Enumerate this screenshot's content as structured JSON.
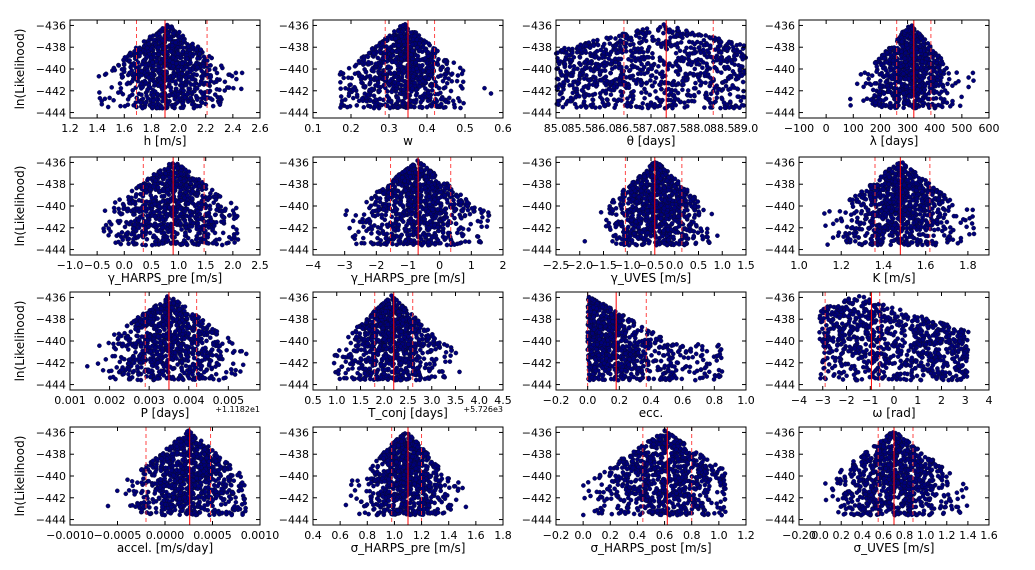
{
  "chart_data": [
    {
      "type": "scatter",
      "xlabel": "h [m/s]",
      "ylabel": "ln(Likelihood)",
      "xlim": [
        1.2,
        2.6
      ],
      "ylim": [
        -444.5,
        -435.5
      ],
      "xticks": [
        "1.2",
        "1.4",
        "1.6",
        "1.8",
        "2.0",
        "2.2",
        "2.4",
        "2.6"
      ],
      "yticks": [
        "-436",
        "-438",
        "-440",
        "-442",
        "-444"
      ],
      "best": 1.9,
      "ci": [
        1.69,
        2.21
      ],
      "dist": {
        "kind": "normal",
        "center": 1.92,
        "spread": 0.19,
        "min": 1.4,
        "max": 2.48
      },
      "n": 850
    },
    {
      "type": "scatter",
      "xlabel": "w",
      "ylabel": "",
      "xlim": [
        0.1,
        0.6
      ],
      "ylim": [
        -444.5,
        -435.5
      ],
      "xticks": [
        "0.1",
        "0.2",
        "0.3",
        "0.4",
        "0.5",
        "0.6"
      ],
      "yticks": [
        "-436",
        "-438",
        "-440",
        "-442",
        "-444"
      ],
      "best": 0.35,
      "ci": [
        0.29,
        0.42
      ],
      "dist": {
        "kind": "normal",
        "center": 0.34,
        "spread": 0.065,
        "min": 0.17,
        "max": 0.59
      },
      "n": 850
    },
    {
      "type": "scatter",
      "xlabel": "θ [days]",
      "ylabel": "",
      "xlim": [
        85.0,
        89.0
      ],
      "ylim": [
        -444.5,
        -435.5
      ],
      "xticks": [
        "85.0",
        "85.5",
        "86.0",
        "86.5",
        "87.0",
        "87.5",
        "88.0",
        "88.5",
        "89.0"
      ],
      "yticks": [
        "-436",
        "-438",
        "-440",
        "-442",
        "-444"
      ],
      "best": 87.32,
      "ci": [
        86.43,
        88.31
      ],
      "dist": {
        "kind": "uniform",
        "center": 87.2,
        "spread": 1.2,
        "min": 85.0,
        "max": 89.0
      },
      "n": 950
    },
    {
      "type": "scatter",
      "xlabel": "λ [days]",
      "ylabel": "",
      "xlim": [
        -100,
        600
      ],
      "ylim": [
        -444.5,
        -435.5
      ],
      "xticks": [
        "-100",
        "0",
        "100",
        "200",
        "300",
        "400",
        "500",
        "600"
      ],
      "yticks": [
        "-436",
        "-438",
        "-440",
        "-442",
        "-444"
      ],
      "best": 323,
      "ci": [
        260,
        386
      ],
      "dist": {
        "kind": "normal",
        "center": 310,
        "spread": 65,
        "min": 10,
        "max": 550
      },
      "n": 850
    },
    {
      "type": "scatter",
      "xlabel": "γ_HARPS_pre [m/s]",
      "ylabel": "ln(Likelihood)",
      "xlim": [
        -1.0,
        2.5
      ],
      "ylim": [
        -444.5,
        -435.5
      ],
      "xticks": [
        "-1.0",
        "-0.5",
        "0.0",
        "0.5",
        "1.0",
        "1.5",
        "2.0",
        "2.5"
      ],
      "yticks": [
        "-436",
        "-438",
        "-440",
        "-442",
        "-444"
      ],
      "best": 0.9,
      "ci": [
        0.35,
        1.47
      ],
      "dist": {
        "kind": "normal",
        "center": 0.9,
        "spread": 0.5,
        "min": -0.4,
        "max": 2.1
      },
      "n": 850
    },
    {
      "type": "scatter",
      "xlabel": "γ_HARPS_pre [m/s]",
      "ylabel": "",
      "xlim": [
        -4,
        2
      ],
      "ylim": [
        -444.5,
        -435.5
      ],
      "xticks": [
        "-4",
        "-3",
        "-2",
        "-1",
        "0",
        "1",
        "2"
      ],
      "yticks": [
        "-436",
        "-438",
        "-440",
        "-442",
        "-444"
      ],
      "best": -0.68,
      "ci": [
        -1.55,
        0.35
      ],
      "dist": {
        "kind": "normal",
        "center": -0.7,
        "spread": 0.8,
        "min": -3.4,
        "max": 1.7
      },
      "n": 850
    },
    {
      "type": "scatter",
      "xlabel": "γ_UVES [m/s]",
      "ylabel": "",
      "xlim": [
        -2.5,
        1.5
      ],
      "ylim": [
        -444.5,
        -435.5
      ],
      "xticks": [
        "-2.5",
        "-2.0",
        "-1.5",
        "-1.0",
        "-0.5",
        "0.0",
        "0.5",
        "1.0",
        "1.5"
      ],
      "yticks": [
        "-436",
        "-438",
        "-440",
        "-442",
        "-444"
      ],
      "best": -0.42,
      "ci": [
        -1.04,
        0.15
      ],
      "dist": {
        "kind": "normal",
        "center": -0.4,
        "spread": 0.45,
        "min": -1.9,
        "max": 0.95
      },
      "n": 850
    },
    {
      "type": "scatter",
      "xlabel": "K [m/s]",
      "ylabel": "",
      "xlim": [
        1.0,
        1.9
      ],
      "ylim": [
        -444.5,
        -435.5
      ],
      "xticks": [
        "1.0",
        "1.2",
        "1.4",
        "1.6",
        "1.8"
      ],
      "yticks": [
        "-436",
        "-438",
        "-440",
        "-442",
        "-444"
      ],
      "best": 1.48,
      "ci": [
        1.36,
        1.62
      ],
      "dist": {
        "kind": "normal",
        "center": 1.48,
        "spread": 0.12,
        "min": 1.12,
        "max": 1.84
      },
      "n": 850
    },
    {
      "type": "scatter",
      "xlabel": "P [days]",
      "ylabel": "ln(Likelihood)",
      "xlim": [
        0.001,
        0.0058
      ],
      "ylim": [
        -444.5,
        -435.5
      ],
      "xticks": [
        "0.001",
        "0.002",
        "0.003",
        "0.004",
        "0.005"
      ],
      "yticks": [
        "-436",
        "-438",
        "-440",
        "-442",
        "-444"
      ],
      "offset": "+1.1182e1",
      "best": 0.0035,
      "ci": [
        0.0029,
        0.0042
      ],
      "dist": {
        "kind": "normal",
        "center": 0.0035,
        "spread": 0.0007,
        "min": 0.0014,
        "max": 0.0055
      },
      "n": 850
    },
    {
      "type": "scatter",
      "xlabel": "T_conj [days]",
      "ylabel": "",
      "xlim": [
        0.5,
        4.5
      ],
      "ylim": [
        -444.5,
        -435.5
      ],
      "xticks": [
        "0.5",
        "1.0",
        "1.5",
        "2.0",
        "2.5",
        "3.0",
        "3.5",
        "4.0",
        "4.5"
      ],
      "yticks": [
        "-436",
        "-438",
        "-440",
        "-442",
        "-444"
      ],
      "offset": "+5.726e3",
      "best": 2.2,
      "ci": [
        1.8,
        2.6
      ],
      "dist": {
        "kind": "normal",
        "center": 2.15,
        "spread": 0.45,
        "min": 0.9,
        "max": 3.9
      },
      "n": 850
    },
    {
      "type": "scatter",
      "xlabel": "ecc.",
      "ylabel": "",
      "xlim": [
        -0.2,
        1.0
      ],
      "ylim": [
        -444.5,
        -435.5
      ],
      "xticks": [
        "-0.2",
        "0.0",
        "0.2",
        "0.4",
        "0.6",
        "0.8",
        "1.0"
      ],
      "yticks": [
        "-436",
        "-438",
        "-440",
        "-442",
        "-444"
      ],
      "best": 0.18,
      "ci": [
        0.0,
        0.37
      ],
      "dist": {
        "kind": "decay",
        "center": 0.0,
        "spread": 0.22,
        "min": 0.0,
        "max": 0.85
      },
      "n": 850
    },
    {
      "type": "scatter",
      "xlabel": "ω [rad]",
      "ylabel": "",
      "xlim": [
        -4,
        4
      ],
      "ylim": [
        -444.5,
        -435.5
      ],
      "xticks": [
        "-4",
        "-3",
        "-2",
        "-1",
        "0",
        "1",
        "2",
        "3",
        "4"
      ],
      "yticks": [
        "-436",
        "-438",
        "-440",
        "-442",
        "-444"
      ],
      "best": -0.95,
      "ci": [
        -2.9,
        -0.6
      ],
      "dist": {
        "kind": "uniform",
        "center": -1.5,
        "spread": 1.3,
        "min": -3.14,
        "max": 3.14
      },
      "n": 850
    },
    {
      "type": "scatter",
      "xlabel": "accel. [m/s/day]",
      "ylabel": "ln(Likelihood)",
      "xlim": [
        -0.001,
        0.001
      ],
      "ylim": [
        -444.5,
        -435.5
      ],
      "xticks": [
        "-0.0010",
        "-0.0005",
        "0.0000",
        "0.0005",
        "0.0010"
      ],
      "yticks": [
        "-436",
        "-438",
        "-440",
        "-442",
        "-444"
      ],
      "best": 0.00026,
      "ci": [
        -0.0002,
        0.00048
      ],
      "dist": {
        "kind": "normal",
        "center": 0.00025,
        "spread": 0.00025,
        "min": -0.0007,
        "max": 0.00085
      },
      "n": 850
    },
    {
      "type": "scatter",
      "xlabel": "σ_HARPS_pre [m/s]",
      "ylabel": "",
      "xlim": [
        0.4,
        1.8
      ],
      "ylim": [
        -444.5,
        -435.5
      ],
      "xticks": [
        "0.4",
        "0.6",
        "0.8",
        "1.0",
        "1.2",
        "1.4",
        "1.6",
        "1.8"
      ],
      "yticks": [
        "-436",
        "-438",
        "-440",
        "-442",
        "-444"
      ],
      "best": 1.1,
      "ci": [
        0.98,
        1.2
      ],
      "dist": {
        "kind": "normal",
        "center": 1.08,
        "spread": 0.14,
        "min": 0.55,
        "max": 1.6
      },
      "n": 850
    },
    {
      "type": "scatter",
      "xlabel": "σ_HARPS_post [m/s]",
      "ylabel": "",
      "xlim": [
        -0.2,
        1.2
      ],
      "ylim": [
        -444.5,
        -435.5
      ],
      "xticks": [
        "-0.2",
        "0.0",
        "0.2",
        "0.4",
        "0.6",
        "0.8",
        "1.0",
        "1.2"
      ],
      "yticks": [
        "-436",
        "-438",
        "-440",
        "-442",
        "-444"
      ],
      "best": 0.62,
      "ci": [
        0.44,
        0.8
      ],
      "dist": {
        "kind": "normal",
        "center": 0.6,
        "spread": 0.22,
        "min": 0.0,
        "max": 1.05
      },
      "n": 850
    },
    {
      "type": "scatter",
      "xlabel": "σ_UVES [m/s]",
      "ylabel": "",
      "xlim": [
        -0.2,
        1.6
      ],
      "ylim": [
        -444.5,
        -435.5
      ],
      "xticks": [
        "-0.20",
        "0.0",
        "0.2",
        "0.4",
        "0.6",
        "0.8",
        "1.0",
        "1.2",
        "1.4",
        "1.6"
      ],
      "yticks": [
        "-436",
        "-438",
        "-440",
        "-442",
        "-444"
      ],
      "best": 0.7,
      "ci": [
        0.55,
        0.88
      ],
      "dist": {
        "kind": "normal",
        "center": 0.7,
        "spread": 0.25,
        "min": 0.05,
        "max": 1.42
      },
      "n": 850
    }
  ],
  "style": {
    "point_color": "#00007a",
    "point_edge": "#0a0a2a",
    "line_color": "#ff0000",
    "dash_color": "#ff3333"
  }
}
